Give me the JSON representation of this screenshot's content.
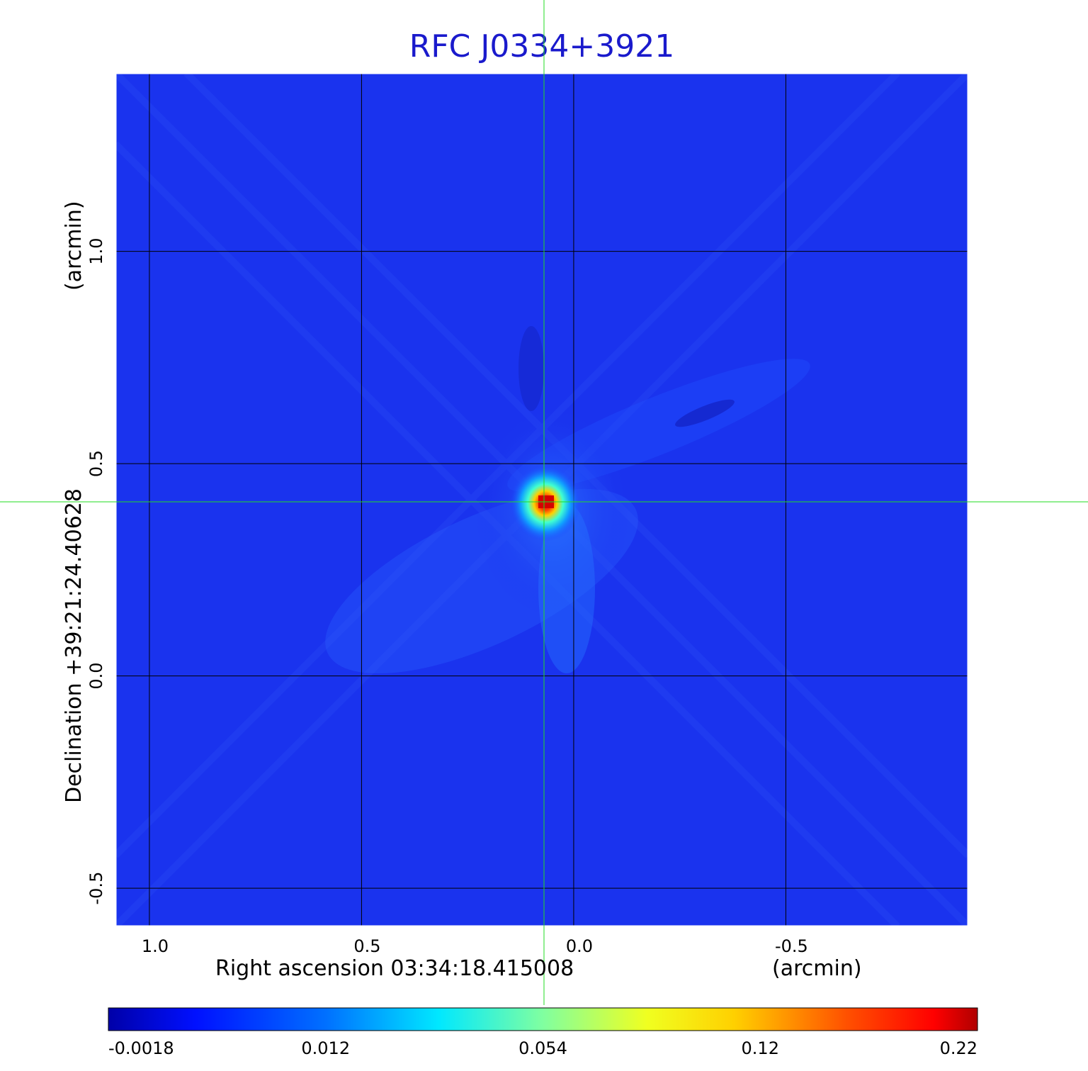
{
  "chart_data": {
    "type": "heatmap",
    "title": "RFC J0334+3921",
    "xlabel": "Right ascension  03:34:18.415008",
    "xunit": "(arcmin)",
    "ylabel": "Declination  +39:21:24.40628",
    "yunit": "(arcmin)",
    "x_ticks": [
      1.0,
      0.5,
      0.0,
      -0.5
    ],
    "x_tick_labels": [
      "1.0",
      "0.5",
      "0.0",
      "-0.5"
    ],
    "xlim": [
      1.08,
      -0.93
    ],
    "y_ticks": [
      1.0,
      0.5,
      0.0,
      -0.5
    ],
    "y_tick_labels": [
      "1.0",
      "0.5",
      "0.0",
      "-0.5"
    ],
    "ylim": [
      -0.59,
      1.42
    ],
    "grid": true,
    "peak": {
      "x": 0.07,
      "y": 0.41,
      "value": 0.22
    },
    "crosshair": {
      "x": 0.07,
      "y": 0.41
    },
    "colorbar": {
      "tick_labels": [
        "-0.0018",
        "0.012",
        "0.054",
        "0.12",
        "0.22"
      ],
      "colormap": "jet",
      "min": -0.0018,
      "max": 0.22
    },
    "colors": {
      "background": "#1a33ee",
      "crosshair": "#22dd22",
      "grid": "#000000",
      "title": "#1a1acc"
    }
  }
}
